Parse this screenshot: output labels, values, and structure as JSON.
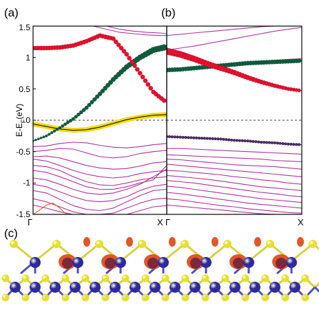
{
  "figure": {
    "panel_labels": [
      "(a)",
      "(b)",
      "(c)"
    ]
  },
  "chart_data": [
    {
      "type": "line",
      "panel": "(a)",
      "ylabel": "E-E_F(eV)",
      "ylim": [
        -1.5,
        1.5
      ],
      "xlim": [
        0,
        1
      ],
      "yticks": [
        "1.5",
        "1",
        "0.5",
        "0",
        "-0.5",
        "-1",
        "-1.5"
      ],
      "ytick_values": [
        1.5,
        1.0,
        0.5,
        0.0,
        -0.5,
        -1.0,
        -1.5
      ],
      "kpoint_labels": [
        "Γ",
        "X"
      ],
      "fermi_level": 0,
      "grid": false,
      "colors": {
        "bands": "#b0309e",
        "red": "#e8102e",
        "green": "#0f5e3e",
        "yellow": "#f5d90a",
        "orange": "#e05a1a"
      },
      "series": [
        {
          "color_key": "red",
          "x": [
            0,
            0.1,
            0.2,
            0.3,
            0.4,
            0.5,
            0.6,
            0.7,
            0.8,
            0.9,
            1.0
          ],
          "values": [
            1.15,
            1.15,
            1.16,
            1.19,
            1.26,
            1.35,
            1.3,
            1.05,
            0.75,
            0.45,
            0.28
          ]
        },
        {
          "color_key": "green",
          "x": [
            0,
            0.1,
            0.2,
            0.3,
            0.4,
            0.5,
            0.6,
            0.7,
            0.8,
            0.9,
            1.0
          ],
          "values": [
            -0.33,
            -0.25,
            -0.12,
            0.02,
            0.2,
            0.42,
            0.65,
            0.85,
            1.0,
            1.12,
            1.17
          ]
        },
        {
          "color_key": "yellow",
          "x": [
            0,
            0.1,
            0.2,
            0.3,
            0.4,
            0.5,
            0.6,
            0.7,
            0.8,
            0.9,
            1.0
          ],
          "values": [
            -0.06,
            -0.1,
            -0.14,
            -0.16,
            -0.15,
            -0.11,
            -0.05,
            0.01,
            0.05,
            0.08,
            0.09
          ]
        },
        {
          "color_key": "bands",
          "x": [
            0,
            0.1,
            0.2,
            0.3,
            0.4,
            0.5,
            0.6,
            0.7,
            0.8,
            0.9,
            1.0
          ],
          "values": [
            -0.42,
            -0.41,
            -0.37,
            -0.35,
            -0.36,
            -0.4,
            -0.43,
            -0.44,
            -0.42,
            -0.39,
            -0.37
          ]
        },
        {
          "color_key": "bands",
          "x": [
            0,
            0.1,
            0.2,
            0.3,
            0.4,
            0.5,
            0.6,
            0.7,
            0.8,
            0.9,
            1.0
          ],
          "values": [
            -0.5,
            -0.48,
            -0.45,
            -0.46,
            -0.52,
            -0.58,
            -0.6,
            -0.58,
            -0.53,
            -0.5,
            -0.48
          ]
        },
        {
          "color_key": "bands",
          "x": [
            0,
            0.1,
            0.2,
            0.3,
            0.4,
            0.5,
            0.6,
            0.7,
            0.8,
            0.9,
            1.0
          ],
          "values": [
            -0.58,
            -0.57,
            -0.6,
            -0.66,
            -0.72,
            -0.76,
            -0.78,
            -0.77,
            -0.73,
            -0.68,
            -0.66
          ]
        },
        {
          "color_key": "bands",
          "x": [
            0,
            0.1,
            0.2,
            0.3,
            0.4,
            0.5,
            0.6,
            0.7,
            0.8,
            0.9,
            1.0
          ],
          "values": [
            -0.62,
            -0.65,
            -0.72,
            -0.8,
            -0.86,
            -0.9,
            -0.92,
            -0.9,
            -0.85,
            -0.82,
            -0.8
          ]
        },
        {
          "color_key": "bands",
          "x": [
            0,
            0.1,
            0.2,
            0.3,
            0.4,
            0.5,
            0.6,
            0.7,
            0.8,
            0.9,
            1.0
          ],
          "values": [
            -0.72,
            -0.74,
            -0.8,
            -0.9,
            -0.98,
            -1.03,
            -1.04,
            -1.0,
            -0.95,
            -0.92,
            -0.9
          ]
        },
        {
          "color_key": "bands",
          "x": [
            0,
            0.1,
            0.2,
            0.3,
            0.4,
            0.5,
            0.6,
            0.7,
            0.8,
            0.9,
            1.0
          ],
          "values": [
            -0.8,
            -0.83,
            -0.9,
            -0.98,
            -1.06,
            -1.1,
            -1.1,
            -1.06,
            -1.0,
            -0.95,
            -0.72
          ]
        },
        {
          "color_key": "bands",
          "x": [
            0,
            0.1,
            0.2,
            0.3,
            0.4,
            0.5,
            0.6,
            0.7,
            0.8,
            0.9,
            1.0
          ],
          "values": [
            -0.92,
            -0.95,
            -1.02,
            -1.1,
            -1.16,
            -1.18,
            -1.16,
            -1.1,
            -1.02,
            -0.9,
            -0.78
          ]
        },
        {
          "color_key": "bands",
          "x": [
            0,
            0.1,
            0.2,
            0.3,
            0.4,
            0.5,
            0.6,
            0.7,
            0.8,
            0.9,
            1.0
          ],
          "values": [
            -1.02,
            -1.06,
            -1.14,
            -1.22,
            -1.28,
            -1.3,
            -1.28,
            -1.22,
            -1.12,
            -1.05,
            -1.02
          ]
        },
        {
          "color_key": "bands",
          "x": [
            0,
            0.1,
            0.2,
            0.3,
            0.4,
            0.5,
            0.6,
            0.7,
            0.8,
            0.9,
            1.0
          ],
          "values": [
            -1.12,
            -1.16,
            -1.26,
            -1.36,
            -1.42,
            -1.44,
            -1.4,
            -1.3,
            -1.2,
            -1.12,
            -1.1
          ]
        },
        {
          "color_key": "bands",
          "x": [
            0,
            0.1,
            0.2,
            0.3,
            0.4,
            0.5,
            0.6,
            0.7,
            0.8,
            0.9,
            1.0
          ],
          "values": [
            -1.25,
            -1.3,
            -1.38,
            -1.46,
            -1.5,
            -1.5,
            -1.48,
            -1.4,
            -1.32,
            -1.26,
            -1.24
          ]
        },
        {
          "color_key": "bands",
          "x": [
            0,
            0.1,
            0.2,
            0.3,
            0.4,
            0.5,
            0.6,
            0.7,
            0.8,
            0.9,
            1.0
          ],
          "values": [
            -1.35,
            -1.4,
            -1.46,
            -1.5,
            -1.5,
            -1.5,
            -1.5,
            -1.5,
            -1.44,
            -1.38,
            -1.36
          ]
        },
        {
          "color_key": "orange",
          "x": [
            0,
            0.05,
            0.1,
            0.15,
            0.2,
            0.25
          ],
          "values": [
            -1.5,
            -1.43,
            -1.35,
            -1.32,
            -1.4,
            -1.5
          ]
        },
        {
          "color_key": "bands",
          "x": [
            0.45,
            0.55,
            0.65,
            0.75,
            0.85,
            0.95,
            1.0
          ],
          "values": [
            1.5,
            1.45,
            1.4,
            1.38,
            1.36,
            1.35,
            1.35
          ]
        },
        {
          "color_key": "bands",
          "x": [
            0.55,
            0.65,
            0.75,
            0.85,
            0.95,
            1.0
          ],
          "values": [
            1.5,
            1.45,
            1.42,
            1.4,
            1.39,
            1.38
          ]
        }
      ]
    },
    {
      "type": "line",
      "panel": "(b)",
      "ylim": [
        -1.5,
        1.5
      ],
      "xlim": [
        0,
        1
      ],
      "kpoint_labels": [
        "Γ",
        "X"
      ],
      "fermi_level": 0,
      "grid": false,
      "colors": {
        "bands": "#b0309e",
        "red": "#e8102e",
        "green": "#0f5e3e",
        "dots": "#4a2a6a"
      },
      "series": [
        {
          "color_key": "red",
          "x": [
            0,
            0.1,
            0.2,
            0.3,
            0.4,
            0.5,
            0.6,
            0.7,
            0.8,
            0.9,
            1.0
          ],
          "values": [
            1.1,
            1.05,
            0.98,
            0.9,
            0.83,
            0.76,
            0.68,
            0.61,
            0.55,
            0.5,
            0.47
          ]
        },
        {
          "color_key": "green",
          "x": [
            0,
            0.1,
            0.2,
            0.3,
            0.4,
            0.5,
            0.6,
            0.7,
            0.8,
            0.9,
            1.0
          ],
          "values": [
            0.8,
            0.81,
            0.83,
            0.85,
            0.87,
            0.89,
            0.91,
            0.92,
            0.93,
            0.94,
            0.95
          ]
        },
        {
          "color_key": "dots",
          "x": [
            0,
            0.1,
            0.2,
            0.3,
            0.4,
            0.5,
            0.6,
            0.7,
            0.8,
            0.9,
            1.0
          ],
          "values": [
            -0.26,
            -0.27,
            -0.28,
            -0.29,
            -0.3,
            -0.32,
            -0.33,
            -0.35,
            -0.36,
            -0.38,
            -0.39
          ]
        },
        {
          "color_key": "bands",
          "x": [
            0,
            0.1,
            0.2,
            0.3,
            0.4,
            0.5,
            0.6,
            0.7,
            0.8,
            0.9,
            1.0
          ],
          "values": [
            1.12,
            1.15,
            1.18,
            1.22,
            1.26,
            1.3,
            1.34,
            1.38,
            1.42,
            1.45,
            1.48
          ]
        },
        {
          "color_key": "bands",
          "x": [
            0,
            0.1,
            0.2,
            0.3,
            0.4,
            0.5,
            0.6,
            0.7,
            0.8,
            0.9,
            1.0
          ],
          "values": [
            1.35,
            1.37,
            1.39,
            1.41,
            1.43,
            1.45,
            1.47,
            1.49,
            1.5,
            1.5,
            1.5
          ]
        },
        {
          "color_key": "bands",
          "x": [
            0,
            0.1,
            0.2,
            0.3,
            0.4,
            0.5,
            0.6,
            0.7,
            0.8,
            0.9,
            1.0
          ],
          "values": [
            0.78,
            0.79,
            0.81,
            0.83,
            0.86,
            0.88,
            0.9,
            0.93,
            0.95,
            0.97,
            0.98
          ]
        },
        {
          "color_key": "bands",
          "x": [
            0,
            0.1,
            0.2,
            0.3,
            0.4,
            0.5,
            0.6,
            0.7,
            0.8,
            0.9,
            1.0
          ],
          "values": [
            -0.45,
            -0.45,
            -0.46,
            -0.47,
            -0.48,
            -0.49,
            -0.5,
            -0.51,
            -0.52,
            -0.53,
            -0.54
          ]
        },
        {
          "color_key": "bands",
          "x": [
            0,
            0.1,
            0.2,
            0.3,
            0.4,
            0.5,
            0.6,
            0.7,
            0.8,
            0.9,
            1.0
          ],
          "values": [
            -0.55,
            -0.56,
            -0.57,
            -0.58,
            -0.59,
            -0.6,
            -0.61,
            -0.62,
            -0.64,
            -0.65,
            -0.66
          ]
        },
        {
          "color_key": "bands",
          "x": [
            0,
            0.1,
            0.2,
            0.3,
            0.4,
            0.5,
            0.6,
            0.7,
            0.8,
            0.9,
            1.0
          ],
          "values": [
            -0.62,
            -0.63,
            -0.65,
            -0.67,
            -0.69,
            -0.71,
            -0.72,
            -0.73,
            -0.74,
            -0.76,
            -0.78
          ]
        },
        {
          "color_key": "bands",
          "x": [
            0,
            0.1,
            0.2,
            0.3,
            0.4,
            0.5,
            0.6,
            0.7,
            0.8,
            0.9,
            1.0
          ],
          "values": [
            -0.7,
            -0.72,
            -0.74,
            -0.76,
            -0.78,
            -0.8,
            -0.82,
            -0.84,
            -0.86,
            -0.88,
            -0.9
          ]
        },
        {
          "color_key": "bands",
          "x": [
            0,
            0.1,
            0.2,
            0.3,
            0.4,
            0.5,
            0.6,
            0.7,
            0.8,
            0.9,
            1.0
          ],
          "values": [
            -0.8,
            -0.81,
            -0.83,
            -0.85,
            -0.87,
            -0.9,
            -0.92,
            -0.95,
            -0.97,
            -1.0,
            -1.02
          ]
        },
        {
          "color_key": "bands",
          "x": [
            0,
            0.1,
            0.2,
            0.3,
            0.4,
            0.5,
            0.6,
            0.7,
            0.8,
            0.9,
            1.0
          ],
          "values": [
            -0.88,
            -0.9,
            -0.92,
            -0.94,
            -0.97,
            -1.0,
            -1.03,
            -1.06,
            -1.08,
            -1.1,
            -1.12
          ]
        },
        {
          "color_key": "bands",
          "x": [
            0,
            0.1,
            0.2,
            0.3,
            0.4,
            0.5,
            0.6,
            0.7,
            0.8,
            0.9,
            1.0
          ],
          "values": [
            -0.96,
            -0.98,
            -1.0,
            -1.03,
            -1.06,
            -1.09,
            -1.12,
            -1.15,
            -1.17,
            -1.2,
            -1.22
          ]
        },
        {
          "color_key": "bands",
          "x": [
            0,
            0.1,
            0.2,
            0.3,
            0.4,
            0.5,
            0.6,
            0.7,
            0.8,
            0.9,
            1.0
          ],
          "values": [
            -1.05,
            -1.07,
            -1.1,
            -1.13,
            -1.16,
            -1.19,
            -1.22,
            -1.25,
            -1.27,
            -1.29,
            -1.31
          ]
        },
        {
          "color_key": "bands",
          "x": [
            0,
            0.1,
            0.2,
            0.3,
            0.4,
            0.5,
            0.6,
            0.7,
            0.8,
            0.9,
            1.0
          ],
          "values": [
            -1.15,
            -1.17,
            -1.2,
            -1.23,
            -1.26,
            -1.29,
            -1.32,
            -1.34,
            -1.36,
            -1.38,
            -1.4
          ]
        },
        {
          "color_key": "bands",
          "x": [
            0,
            0.1,
            0.2,
            0.3,
            0.4,
            0.5,
            0.6,
            0.7,
            0.8,
            0.9,
            1.0
          ],
          "values": [
            -1.25,
            -1.27,
            -1.3,
            -1.33,
            -1.36,
            -1.38,
            -1.41,
            -1.43,
            -1.45,
            -1.47,
            -1.48
          ]
        },
        {
          "color_key": "bands",
          "x": [
            0,
            0.1,
            0.2,
            0.3,
            0.4,
            0.5,
            0.6,
            0.7,
            0.8,
            0.9,
            1.0
          ],
          "values": [
            -1.35,
            -1.37,
            -1.39,
            -1.41,
            -1.43,
            -1.45,
            -1.47,
            -1.49,
            -1.5,
            -1.5,
            -1.5
          ]
        }
      ]
    }
  ],
  "structure": {
    "colors": {
      "yellow_atom": "#e6e02a",
      "blue_atom": "#2e2a9e",
      "orange_lobe": "#e2562a",
      "dark_lobe": "#7a2a3a",
      "bond_yellow": "#d8d040",
      "bond_blue": "#5050c0"
    }
  }
}
